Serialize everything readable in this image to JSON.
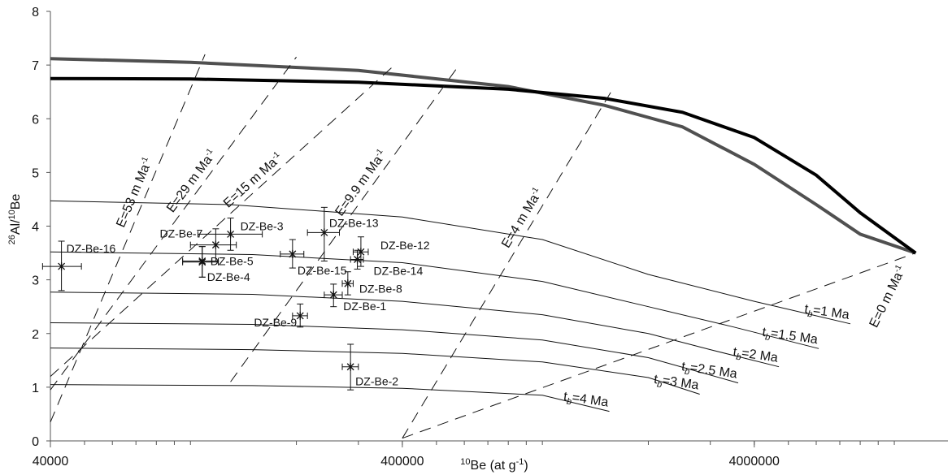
{
  "chart_data": {
    "type": "scatter",
    "title": "",
    "xlabel": "<sup>10</sup>Be (at g<sup>-1</sup>)",
    "xlabel_parts": {
      "sup1": "10",
      "main": "Be (at g",
      "sup2": "-1",
      "end": ")"
    },
    "ylabel_parts": {
      "sup1": "26",
      "mid": "Al/",
      "sup2": "10",
      "end": "Be"
    },
    "x_scale": "log",
    "xlim": [
      40000,
      12500000
    ],
    "ylim": [
      0,
      8
    ],
    "x_ticks": [
      {
        "value": 40000,
        "label": "40000"
      },
      {
        "value": 400000,
        "label": "400000"
      },
      {
        "value": 4000000,
        "label": "4000000"
      }
    ],
    "y_ticks": [
      {
        "value": 0,
        "label": "0"
      },
      {
        "value": 1,
        "label": "1"
      },
      {
        "value": 2,
        "label": "2"
      },
      {
        "value": 3,
        "label": "3"
      },
      {
        "value": 4,
        "label": "4"
      },
      {
        "value": 5,
        "label": "5"
      },
      {
        "value": 6,
        "label": "6"
      },
      {
        "value": 7,
        "label": "7"
      },
      {
        "value": 8,
        "label": "8"
      }
    ],
    "envelopes": [
      {
        "color": "#505050",
        "points": [
          [
            40000,
            7.12
          ],
          [
            100000,
            7.05
          ],
          [
            300000,
            6.9
          ],
          [
            800000,
            6.6
          ],
          [
            1500000,
            6.25
          ],
          [
            2500000,
            5.85
          ],
          [
            4000000,
            5.15
          ],
          [
            6000000,
            4.4
          ],
          [
            8000000,
            3.85
          ],
          [
            11500000,
            3.5
          ]
        ]
      },
      {
        "color": "#000000",
        "points": [
          [
            40000,
            6.75
          ],
          [
            100000,
            6.74
          ],
          [
            300000,
            6.68
          ],
          [
            800000,
            6.55
          ],
          [
            1500000,
            6.38
          ],
          [
            2500000,
            6.12
          ],
          [
            4000000,
            5.65
          ],
          [
            6000000,
            4.95
          ],
          [
            8000000,
            4.25
          ],
          [
            11500000,
            3.5
          ]
        ]
      }
    ],
    "burial_isochrons": [
      {
        "label": "t_b=1 Ma",
        "main": "t",
        "sub": "b",
        "rest": "=1 Ma",
        "points": [
          [
            40000,
            4.47
          ],
          [
            130000,
            4.4
          ],
          [
            400000,
            4.17
          ],
          [
            1000000,
            3.75
          ],
          [
            2000000,
            3.1
          ],
          [
            4000000,
            2.6
          ],
          [
            7500000,
            2.18
          ]
        ]
      },
      {
        "label": "t_b=1.5 Ma",
        "main": "t",
        "sub": "b",
        "rest": "=1.5 Ma",
        "points": [
          [
            40000,
            3.52
          ],
          [
            150000,
            3.47
          ],
          [
            400000,
            3.32
          ],
          [
            1000000,
            2.97
          ],
          [
            2000000,
            2.5
          ],
          [
            3500000,
            2.12
          ],
          [
            6100000,
            1.72
          ]
        ]
      },
      {
        "label": "t_b=2 Ma",
        "main": "t",
        "sub": "b",
        "rest": "=2 Ma",
        "points": [
          [
            40000,
            2.77
          ],
          [
            150000,
            2.73
          ],
          [
            400000,
            2.6
          ],
          [
            1000000,
            2.35
          ],
          [
            2000000,
            2.0
          ],
          [
            3000000,
            1.7
          ],
          [
            4700000,
            1.38
          ]
        ]
      },
      {
        "label": "t_b=2.5 Ma",
        "main": "t",
        "sub": "b",
        "rest": "=2.5 Ma",
        "points": [
          [
            40000,
            2.2
          ],
          [
            150000,
            2.17
          ],
          [
            400000,
            2.07
          ],
          [
            1000000,
            1.88
          ],
          [
            2000000,
            1.55
          ],
          [
            3600000,
            1.08
          ]
        ]
      },
      {
        "label": "t_b=3 Ma",
        "main": "t",
        "sub": "b",
        "rest": "=3 Ma",
        "points": [
          [
            40000,
            1.73
          ],
          [
            150000,
            1.7
          ],
          [
            400000,
            1.63
          ],
          [
            1000000,
            1.47
          ],
          [
            2000000,
            1.18
          ],
          [
            2800000,
            0.87
          ]
        ]
      },
      {
        "label": "t_b=4 Ma",
        "main": "t",
        "sub": "b",
        "rest": "=4 Ma",
        "points": [
          [
            40000,
            1.05
          ],
          [
            150000,
            1.03
          ],
          [
            400000,
            0.98
          ],
          [
            1000000,
            0.85
          ],
          [
            1550000,
            0.55
          ]
        ]
      }
    ],
    "erosion_isolines": [
      {
        "label": "E=53 m Ma-1",
        "main": "E=53 m Ma",
        "sup": "-1",
        "start": [
          40000,
          0.35
        ],
        "end": [
          110000,
          7.2
        ]
      },
      {
        "label": "E=29 m Ma-1",
        "main": "E=29 m Ma",
        "sup": "-1",
        "start": [
          40000,
          0.95
        ],
        "end": [
          200000,
          7.15
        ]
      },
      {
        "label": "E=15 m Ma-1",
        "main": "E=15 m Ma",
        "sup": "-1",
        "start": [
          40000,
          1.2
        ],
        "end": [
          380000,
          7.0
        ]
      },
      {
        "label": "E=9.9 m Ma-1",
        "main": "E=9.9 m Ma",
        "sup": "-1",
        "start": [
          130000,
          1.1
        ],
        "end": [
          580000,
          7.0
        ]
      },
      {
        "label": "E=4 m Ma-1",
        "main": "E=4 m Ma",
        "sup": "-1",
        "start": [
          400000,
          0.05
        ],
        "end": [
          1600000,
          6.6
        ]
      },
      {
        "label": "E=0 m Ma-1",
        "main": "E=0 m Ma",
        "sup": "-1",
        "start": [
          400000,
          0.05
        ],
        "end": [
          11500000,
          3.5
        ]
      }
    ],
    "samples": [
      {
        "name": "DZ-Be-16",
        "x": 43000,
        "y": 3.25,
        "xerr": [
          38000,
          49000
        ],
        "yerr": [
          2.8,
          3.72
        ]
      },
      {
        "name": "DZ-Be-7",
        "x": 118000,
        "y": 3.65,
        "xerr": [
          100000,
          135000
        ],
        "yerr": [
          3.35,
          3.95
        ]
      },
      {
        "name": "DZ-Be-3",
        "x": 130000,
        "y": 3.85,
        "xerr": [
          105000,
          160000
        ],
        "yerr": [
          3.55,
          4.15
        ]
      },
      {
        "name": "DZ-Be-5",
        "x": 108000,
        "y": 3.35,
        "xerr": [
          95000,
          120000
        ],
        "yerr": [
          3.05,
          3.62
        ]
      },
      {
        "name": "DZ-Be-4",
        "x": 108000,
        "y": 3.33,
        "xerr": [
          95000,
          120000
        ],
        "yerr": [
          3.05,
          3.62
        ]
      },
      {
        "name": "DZ-Be-15",
        "x": 195000,
        "y": 3.48,
        "xerr": [
          180000,
          210000
        ],
        "yerr": [
          3.22,
          3.75
        ]
      },
      {
        "name": "DZ-Be-13",
        "x": 240000,
        "y": 3.88,
        "xerr": [
          215000,
          265000
        ],
        "yerr": [
          3.35,
          4.35
        ]
      },
      {
        "name": "DZ-Be-12",
        "x": 305000,
        "y": 3.52,
        "xerr": [
          290000,
          320000
        ],
        "yerr": [
          3.25,
          3.8
        ]
      },
      {
        "name": "DZ-Be-14",
        "x": 298000,
        "y": 3.38,
        "xerr": [
          285000,
          310000
        ],
        "yerr": [
          3.2,
          3.55
        ]
      },
      {
        "name": "DZ-Be-8",
        "x": 280000,
        "y": 2.93,
        "xerr": [
          270000,
          290000
        ],
        "yerr": [
          2.72,
          3.15
        ]
      },
      {
        "name": "DZ-Be-1",
        "x": 255000,
        "y": 2.72,
        "xerr": [
          240000,
          270000
        ],
        "yerr": [
          2.5,
          2.92
        ]
      },
      {
        "name": "DZ-Be-9",
        "x": 205000,
        "y": 2.33,
        "xerr": [
          195000,
          215000
        ],
        "yerr": [
          2.12,
          2.55
        ]
      },
      {
        "name": "DZ-Be-2",
        "x": 285000,
        "y": 1.38,
        "xerr": [
          270000,
          300000
        ],
        "yerr": [
          0.95,
          1.8
        ]
      }
    ],
    "grid": false,
    "legend": "none"
  }
}
